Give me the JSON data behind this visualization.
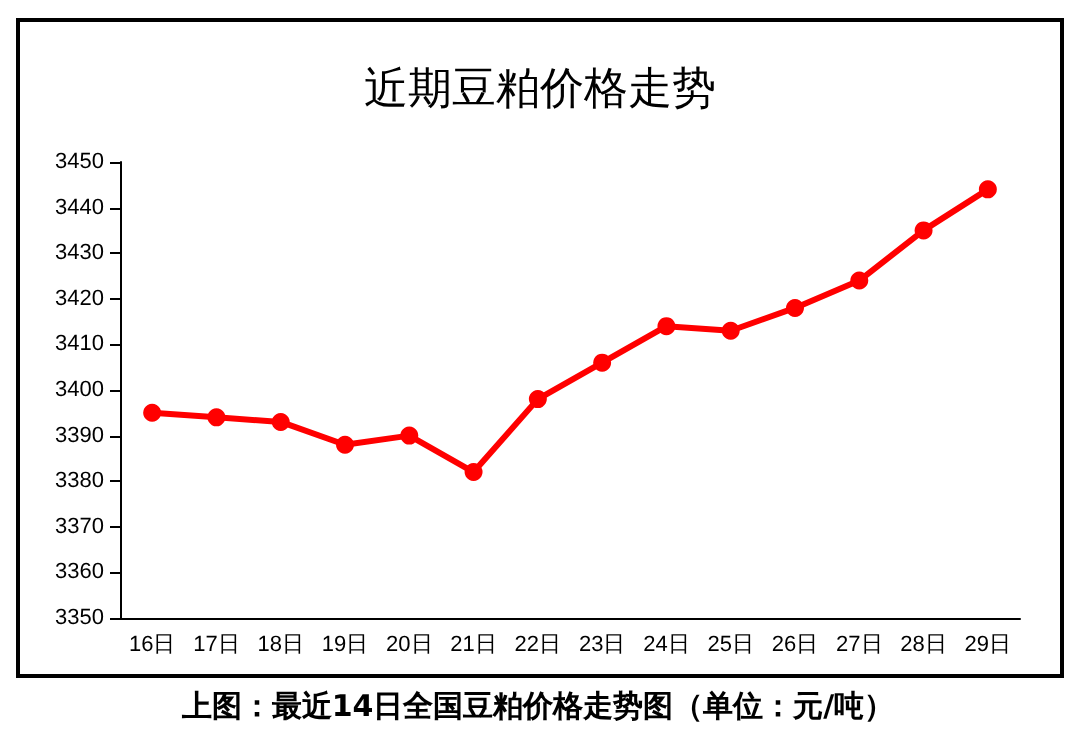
{
  "chart_data": {
    "type": "line",
    "title": "近期豆粕价格走势",
    "categories": [
      "16日",
      "17日",
      "18日",
      "19日",
      "20日",
      "21日",
      "22日",
      "23日",
      "24日",
      "25日",
      "26日",
      "27日",
      "28日",
      "29日"
    ],
    "series": [
      {
        "color": "#ff0000",
        "values": [
          3395,
          3394,
          3393,
          3388,
          3390,
          3382,
          3398,
          3406,
          3414,
          3413,
          3418,
          3424,
          3435,
          3444
        ]
      }
    ],
    "ylim": [
      3350,
      3450
    ],
    "yticks": [
      3350,
      3360,
      3370,
      3380,
      3390,
      3400,
      3410,
      3420,
      3430,
      3440,
      3450
    ],
    "grid": false,
    "marker": "circle",
    "annotations": [
      "上图：最近14日全国豆粕价格走势图（单位：元/吨）"
    ]
  }
}
